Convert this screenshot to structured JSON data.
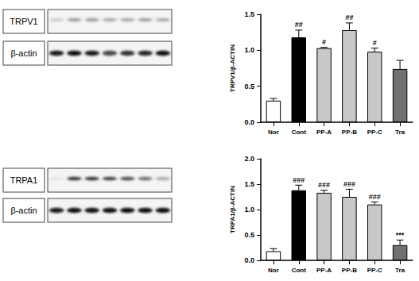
{
  "chart_data": [
    {
      "type": "bar",
      "y_label": "TRPV1/β-ACTIN",
      "categories": [
        "Nor",
        "Cont",
        "PP-A",
        "PP-B",
        "PP-C",
        "Tra"
      ],
      "values": [
        0.3,
        1.18,
        1.03,
        1.28,
        0.98,
        0.74
      ],
      "errors": [
        0.03,
        0.1,
        0.01,
        0.1,
        0.05,
        0.12
      ],
      "annotations": [
        null,
        "##",
        "#",
        "##",
        "#",
        null
      ],
      "colors": [
        "#ffffff",
        "#000000",
        "#c8c8c8",
        "#c8c8c8",
        "#c8c8c8",
        "#707070"
      ],
      "ylim": [
        0,
        1.5
      ],
      "yticks": [
        {
          "value": 0,
          "label": "0.0"
        },
        0.5,
        {
          "value": 1,
          "label": "1.0"
        },
        1.5
      ],
      "grid": false
    },
    {
      "type": "bar",
      "y_label": "TRPA1/β-ACTIN",
      "categories": [
        "Nor",
        "Cont",
        "PP-A",
        "PP-B",
        "PP-C",
        "Tra"
      ],
      "values": [
        0.18,
        1.38,
        1.33,
        1.25,
        1.1,
        0.3
      ],
      "errors": [
        0.05,
        0.1,
        0.05,
        0.15,
        0.05,
        0.1
      ],
      "annotations": [
        null,
        "###",
        "###",
        "###",
        "###",
        "***"
      ],
      "colors": [
        "#ffffff",
        "#000000",
        "#c8c8c8",
        "#c8c8c8",
        "#c8c8c8",
        "#707070"
      ],
      "ylim": [
        0,
        2
      ],
      "yticks": [
        {
          "value": 0,
          "label": "0.0"
        },
        0.5,
        {
          "value": 1,
          "label": "1.0"
        },
        1.5,
        {
          "value": 2,
          "label": "2.0"
        }
      ],
      "grid": false
    }
  ],
  "blots": [
    {
      "bands": [
        "TRPV1",
        "β-actin"
      ]
    },
    {
      "bands": [
        "TRPA1",
        "β-actin"
      ]
    }
  ]
}
